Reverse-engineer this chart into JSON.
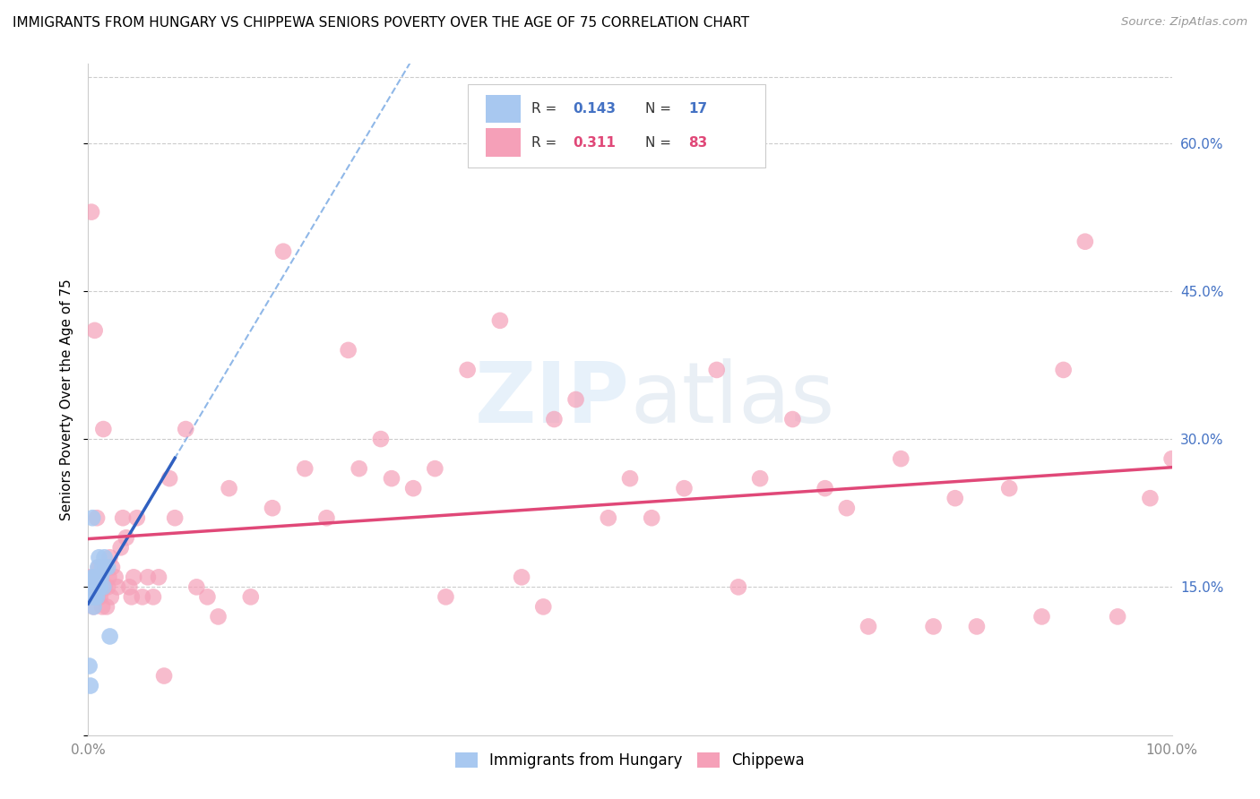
{
  "title": "IMMIGRANTS FROM HUNGARY VS CHIPPEWA SENIORS POVERTY OVER THE AGE OF 75 CORRELATION CHART",
  "source": "Source: ZipAtlas.com",
  "ylabel": "Seniors Poverty Over the Age of 75",
  "xlim": [
    0,
    1.0
  ],
  "ylim": [
    0,
    0.68
  ],
  "yticks": [
    0.0,
    0.15,
    0.3,
    0.45,
    0.6
  ],
  "ytick_labels": [
    "",
    "15.0%",
    "30.0%",
    "45.0%",
    "60.0%"
  ],
  "xtick_positions": [
    0.0,
    0.1,
    0.2,
    0.3,
    0.4,
    0.5,
    0.6,
    0.7,
    0.8,
    0.9,
    1.0
  ],
  "xtick_labels": [
    "0.0%",
    "",
    "",
    "",
    "",
    "",
    "",
    "",
    "",
    "",
    "100.0%"
  ],
  "color_hungary": "#a8c8f0",
  "color_chippewa": "#f5a0b8",
  "line_color_hungary": "#3060c0",
  "line_color_chippewa": "#e04878",
  "dashed_line_color": "#90b8e8",
  "watermark_color": "#d8e8f8",
  "hungary_x": [
    0.001,
    0.002,
    0.003,
    0.003,
    0.004,
    0.004,
    0.005,
    0.005,
    0.005,
    0.006,
    0.006,
    0.007,
    0.007,
    0.008,
    0.008,
    0.009,
    0.009,
    0.01,
    0.01,
    0.011,
    0.012,
    0.013,
    0.014,
    0.015,
    0.016,
    0.018,
    0.02
  ],
  "hungary_y": [
    0.07,
    0.05,
    0.14,
    0.15,
    0.16,
    0.22,
    0.13,
    0.14,
    0.15,
    0.14,
    0.16,
    0.15,
    0.16,
    0.14,
    0.15,
    0.15,
    0.17,
    0.16,
    0.18,
    0.15,
    0.16,
    0.17,
    0.15,
    0.18,
    0.17,
    0.17,
    0.1
  ],
  "chippewa_x": [
    0.002,
    0.003,
    0.004,
    0.005,
    0.006,
    0.007,
    0.008,
    0.009,
    0.01,
    0.011,
    0.012,
    0.013,
    0.014,
    0.015,
    0.016,
    0.017,
    0.018,
    0.019,
    0.02,
    0.021,
    0.022,
    0.025,
    0.027,
    0.03,
    0.032,
    0.035,
    0.038,
    0.04,
    0.042,
    0.045,
    0.05,
    0.055,
    0.06,
    0.065,
    0.07,
    0.075,
    0.08,
    0.09,
    0.1,
    0.11,
    0.12,
    0.13,
    0.15,
    0.17,
    0.18,
    0.2,
    0.22,
    0.24,
    0.25,
    0.27,
    0.28,
    0.3,
    0.32,
    0.33,
    0.35,
    0.38,
    0.4,
    0.42,
    0.43,
    0.45,
    0.48,
    0.5,
    0.52,
    0.55,
    0.58,
    0.6,
    0.62,
    0.65,
    0.68,
    0.7,
    0.72,
    0.75,
    0.78,
    0.8,
    0.82,
    0.85,
    0.88,
    0.9,
    0.92,
    0.95,
    0.98,
    1.0
  ],
  "chippewa_y": [
    0.16,
    0.53,
    0.14,
    0.13,
    0.41,
    0.16,
    0.22,
    0.14,
    0.17,
    0.14,
    0.16,
    0.13,
    0.31,
    0.15,
    0.17,
    0.13,
    0.15,
    0.16,
    0.18,
    0.14,
    0.17,
    0.16,
    0.15,
    0.19,
    0.22,
    0.2,
    0.15,
    0.14,
    0.16,
    0.22,
    0.14,
    0.16,
    0.14,
    0.16,
    0.06,
    0.26,
    0.22,
    0.31,
    0.15,
    0.14,
    0.12,
    0.25,
    0.14,
    0.23,
    0.49,
    0.27,
    0.22,
    0.39,
    0.27,
    0.3,
    0.26,
    0.25,
    0.27,
    0.14,
    0.37,
    0.42,
    0.16,
    0.13,
    0.32,
    0.34,
    0.22,
    0.26,
    0.22,
    0.25,
    0.37,
    0.15,
    0.26,
    0.32,
    0.25,
    0.23,
    0.11,
    0.28,
    0.11,
    0.24,
    0.11,
    0.25,
    0.12,
    0.37,
    0.5,
    0.12,
    0.24,
    0.28
  ]
}
